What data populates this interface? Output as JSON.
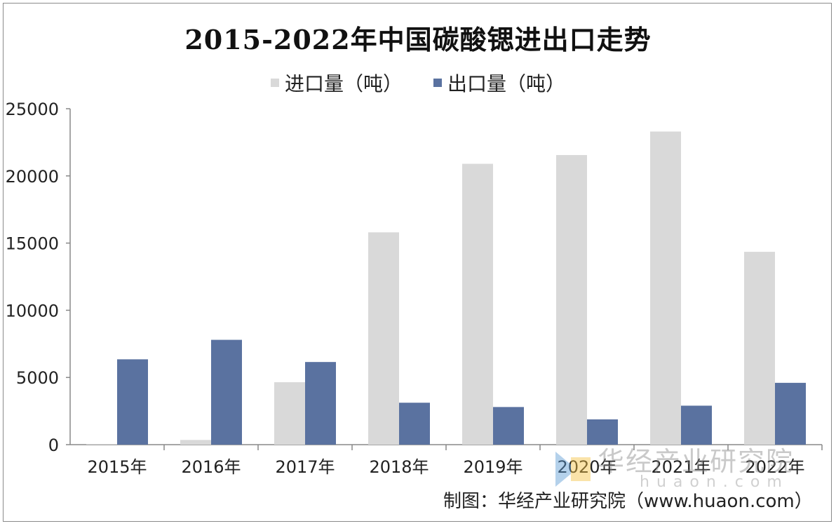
{
  "title": "2015-2022年中国碳酸锶进出口走势",
  "legend": [
    {
      "label": "进口量（吨）",
      "color": "#d9d9d9"
    },
    {
      "label": "出口量（吨）",
      "color": "#5a72a0"
    }
  ],
  "source": "制图：华经产业研究院（www.huaon.com）",
  "watermark": {
    "cn": "华经产业研究院",
    "en": "huaon.com"
  },
  "chart_data": {
    "type": "bar",
    "title": "2015-2022年中国碳酸锶进出口走势",
    "categories": [
      "2015年",
      "2016年",
      "2017年",
      "2018年",
      "2019年",
      "2020年",
      "2021年",
      "2022年"
    ],
    "series": [
      {
        "name": "进口量（吨）",
        "values": [
          30,
          350,
          4650,
          15800,
          20900,
          21550,
          23300,
          14350
        ]
      },
      {
        "name": "出口量（吨）",
        "values": [
          6350,
          7800,
          6150,
          3120,
          2800,
          1880,
          2900,
          4600
        ]
      }
    ],
    "ylim": [
      0,
      25000
    ],
    "yticks": [
      0,
      5000,
      10000,
      15000,
      20000,
      25000
    ],
    "legend_position": "top",
    "grid": false
  }
}
